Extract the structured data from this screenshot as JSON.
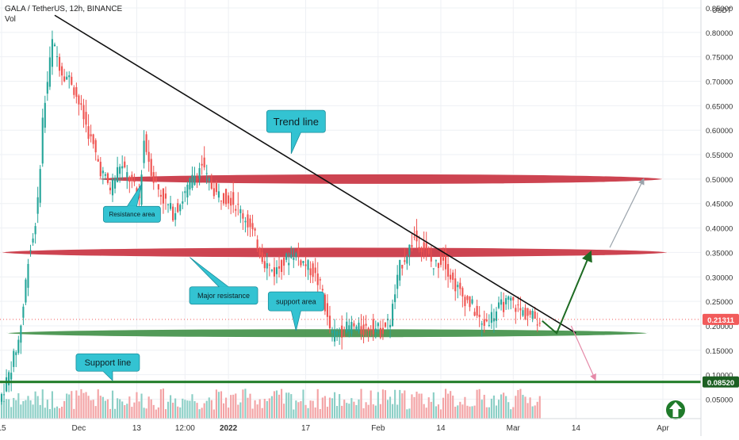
{
  "header": {
    "symbol": "GALA / TetherUS, 12h, BINANCE",
    "vol": "Vol"
  },
  "colors": {
    "background": "#ffffff",
    "grid": "#eef0f4",
    "up": "#26a69a",
    "down": "#ef5350",
    "volume_up": "#8ccfc6",
    "volume_down": "#f3a3a5",
    "resistance_band": "#c8303e",
    "support_band": "#3f8f46",
    "support_line": "#1e7a25",
    "callout": "#33c3d2",
    "trend_line": "#111111",
    "current_price": "#f25b5b"
  },
  "chart_data": {
    "type": "candlestick",
    "title": "GALA / TetherUS, 12h, BINANCE",
    "y_axis": {
      "unit": "USDT",
      "ticks": [
        "0.85000",
        "0.80000",
        "0.75000",
        "0.70000",
        "0.65000",
        "0.60000",
        "0.55000",
        "0.50000",
        "0.45000",
        "0.40000",
        "0.35000",
        "0.30000",
        "0.25000",
        "0.20000",
        "0.15000",
        "0.10000",
        "0.05000"
      ],
      "range": [
        0.02,
        0.85
      ]
    },
    "x_axis": {
      "ticks": [
        "15",
        "Dec",
        "13",
        "12:00",
        "2022",
        "17",
        "Feb",
        "14",
        "Mar",
        "14",
        "Apr"
      ],
      "start": "2021-11-15",
      "end": "2022-04-01"
    },
    "price_tags": [
      {
        "value": "0.21311",
        "role": "current-price"
      },
      {
        "value": "0.08520",
        "role": "support-line"
      }
    ],
    "price_path": [
      [
        "2021-11-15",
        0.045
      ],
      [
        "2021-11-17",
        0.1
      ],
      [
        "2021-11-19",
        0.17
      ],
      [
        "2021-11-20",
        0.24
      ],
      [
        "2021-11-21",
        0.34
      ],
      [
        "2021-11-22",
        0.38
      ],
      [
        "2021-11-23",
        0.45
      ],
      [
        "2021-11-24",
        0.62
      ],
      [
        "2021-11-25",
        0.7
      ],
      [
        "2021-11-26",
        0.78
      ],
      [
        "2021-11-28",
        0.72
      ],
      [
        "2021-11-30",
        0.7
      ],
      [
        "2021-12-02",
        0.64
      ],
      [
        "2021-12-04",
        0.58
      ],
      [
        "2021-12-06",
        0.52
      ],
      [
        "2021-12-08",
        0.48
      ],
      [
        "2021-12-10",
        0.53
      ],
      [
        "2021-12-12",
        0.5
      ],
      [
        "2021-12-14",
        0.46
      ],
      [
        "2021-12-15",
        0.58
      ],
      [
        "2021-12-17",
        0.5
      ],
      [
        "2021-12-19",
        0.46
      ],
      [
        "2021-12-21",
        0.43
      ],
      [
        "2021-12-23",
        0.46
      ],
      [
        "2021-12-25",
        0.5
      ],
      [
        "2021-12-27",
        0.53
      ],
      [
        "2021-12-28",
        0.5
      ],
      [
        "2021-12-30",
        0.47
      ],
      [
        "2022-01-02",
        0.46
      ],
      [
        "2022-01-05",
        0.42
      ],
      [
        "2022-01-07",
        0.38
      ],
      [
        "2022-01-09",
        0.33
      ],
      [
        "2022-01-11",
        0.31
      ],
      [
        "2022-01-13",
        0.33
      ],
      [
        "2022-01-15",
        0.35
      ],
      [
        "2022-01-17",
        0.33
      ],
      [
        "2022-01-19",
        0.31
      ],
      [
        "2022-01-21",
        0.27
      ],
      [
        "2022-01-22",
        0.21
      ],
      [
        "2022-01-23",
        0.18
      ],
      [
        "2022-01-25",
        0.19
      ],
      [
        "2022-01-27",
        0.2
      ],
      [
        "2022-01-29",
        0.19
      ],
      [
        "2022-01-31",
        0.2
      ],
      [
        "2022-02-02",
        0.19
      ],
      [
        "2022-02-04",
        0.21
      ],
      [
        "2022-02-06",
        0.32
      ],
      [
        "2022-02-08",
        0.36
      ],
      [
        "2022-02-09",
        0.38
      ],
      [
        "2022-02-11",
        0.36
      ],
      [
        "2022-02-13",
        0.32
      ],
      [
        "2022-02-15",
        0.34
      ],
      [
        "2022-02-17",
        0.29
      ],
      [
        "2022-02-19",
        0.26
      ],
      [
        "2022-02-21",
        0.24
      ],
      [
        "2022-02-23",
        0.2
      ],
      [
        "2022-02-25",
        0.22
      ],
      [
        "2022-02-27",
        0.24
      ],
      [
        "2022-03-01",
        0.25
      ],
      [
        "2022-03-03",
        0.23
      ],
      [
        "2022-03-05",
        0.22
      ],
      [
        "2022-03-07",
        0.213
      ]
    ],
    "annotations": [
      {
        "type": "trend-line",
        "from": [
          "2021-11-26",
          0.835
        ],
        "to": [
          "2022-03-14",
          0.185
        ]
      },
      {
        "type": "resistance-band",
        "price": 0.5,
        "from": "2021-12-05",
        "to": "2022-04-01"
      },
      {
        "type": "resistance-band",
        "price": 0.35,
        "from": "2021-11-15",
        "to": "2022-04-02"
      },
      {
        "type": "support-band",
        "price": 0.185,
        "from": "2021-11-16",
        "to": "2022-03-29"
      },
      {
        "type": "support-line",
        "price": 0.0852
      },
      {
        "type": "arrow",
        "color": "green",
        "points": [
          [
            "2022-03-07",
            0.21
          ],
          [
            "2022-03-10",
            0.185
          ],
          [
            "2022-03-17",
            0.35
          ]
        ]
      },
      {
        "type": "arrow",
        "color": "gray",
        "points": [
          [
            "2022-03-21",
            0.36
          ],
          [
            "2022-03-28",
            0.5
          ]
        ]
      },
      {
        "type": "arrow",
        "color": "pink",
        "points": [
          [
            "2022-03-13",
            0.2
          ],
          [
            "2022-03-18",
            0.09
          ]
        ]
      }
    ],
    "callouts": [
      {
        "label": "Trend line",
        "size": "large"
      },
      {
        "label": "Resistance area",
        "size": "small"
      },
      {
        "label": "Major resistance",
        "size": "small"
      },
      {
        "label": "support area",
        "size": "small"
      },
      {
        "label": "Support line",
        "size": "medium"
      }
    ],
    "volume": "shown (shaded bars along bottom)"
  }
}
